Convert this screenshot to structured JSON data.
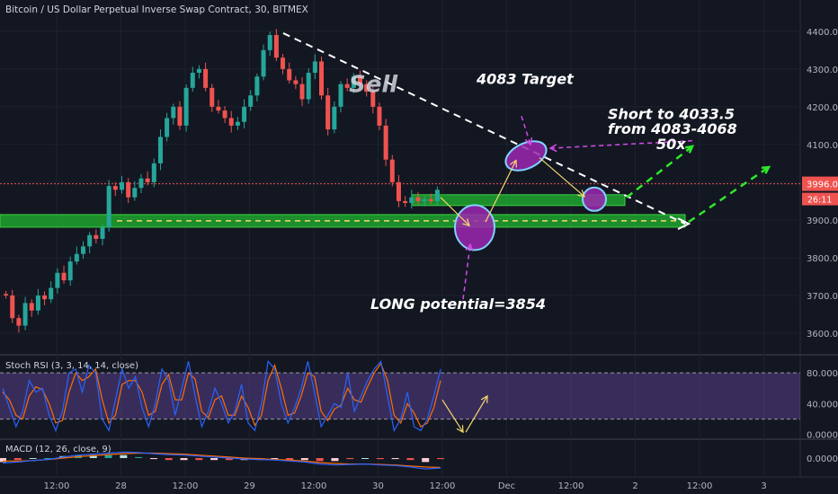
{
  "chart_data": {
    "type": "candlestick",
    "title": "Bitcoin / US Dollar Perpetual Inverse Swap Contract, 30, BITMEX",
    "x_ticks": [
      "12:00",
      "28",
      "12:00",
      "29",
      "12:00",
      "30",
      "12:00",
      "Dec",
      "12:00",
      "2",
      "12:00",
      "3"
    ],
    "price_axis": {
      "ticks": [
        4400,
        4300,
        4200,
        4100,
        4000,
        3900,
        3800,
        3700,
        3600
      ],
      "ylim": [
        3550,
        4440
      ]
    },
    "last_price": {
      "value": "3996.0",
      "countdown": "26:11"
    },
    "price_path": [
      3700,
      3640,
      3620,
      3680,
      3660,
      3700,
      3690,
      3720,
      3760,
      3740,
      3790,
      3810,
      3830,
      3860,
      3850,
      3880,
      3990,
      3980,
      4000,
      3960,
      3985,
      4010,
      4000,
      4050,
      4120,
      4170,
      4200,
      4150,
      4250,
      4290,
      4300,
      4250,
      4200,
      4190,
      4170,
      4150,
      4160,
      4200,
      4230,
      4280,
      4350,
      4390,
      4330,
      4300,
      4270,
      4260,
      4220,
      4290,
      4320,
      4230,
      4140,
      4200,
      4260,
      4250,
      4280,
      4260,
      4240,
      4200,
      4150,
      4060,
      4000,
      3950,
      3945,
      3960,
      3950,
      3955,
      3950,
      3980
    ],
    "annotations": {
      "sell": "Sell",
      "target": "4083 Target",
      "short_lines": [
        "Short to 4033.5",
        "from 4083-4068",
        "50x"
      ],
      "long": "LONG potential=3854"
    },
    "indicators": [
      {
        "name": "Stoch RSI (3, 3, 14, 14, close)",
        "ticks": [
          "80.0000",
          "40.0000",
          "0.0000"
        ],
        "ylim": [
          -5,
          100
        ],
        "band": [
          20,
          80
        ],
        "k": [
          60,
          35,
          10,
          30,
          70,
          55,
          60,
          25,
          5,
          30,
          80,
          85,
          55,
          90,
          80,
          20,
          5,
          45,
          85,
          60,
          75,
          35,
          10,
          40,
          85,
          70,
          25,
          60,
          95,
          50,
          10,
          30,
          60,
          40,
          15,
          30,
          65,
          15,
          5,
          40,
          95,
          85,
          40,
          15,
          35,
          60,
          95,
          55,
          10,
          25,
          40,
          35,
          80,
          30,
          50,
          70,
          85,
          95,
          50,
          5,
          20,
          55,
          10,
          5,
          20,
          50,
          85
        ],
        "d": [
          55,
          45,
          25,
          20,
          50,
          62,
          58,
          40,
          15,
          18,
          55,
          80,
          70,
          75,
          85,
          45,
          15,
          25,
          65,
          70,
          70,
          55,
          25,
          30,
          65,
          78,
          45,
          45,
          80,
          72,
          30,
          22,
          45,
          50,
          25,
          25,
          50,
          35,
          12,
          25,
          70,
          90,
          60,
          25,
          28,
          50,
          80,
          75,
          30,
          18,
          33,
          38,
          60,
          45,
          42,
          62,
          80,
          92,
          70,
          25,
          15,
          40,
          28,
          10,
          15,
          35,
          70
        ]
      },
      {
        "name": "MACD (12, 26, close, 9)",
        "ticks": [
          "0.0000"
        ],
        "macd": [
          -10,
          -8,
          -5,
          -3,
          2,
          6,
          8,
          10,
          12,
          11,
          9,
          7,
          6,
          4,
          2,
          0,
          -2,
          -3,
          -4,
          -6,
          -8,
          -12,
          -14,
          -13,
          -12,
          -14,
          -15,
          -18,
          -22,
          -20
        ],
        "signal": [
          -6,
          -6,
          -5,
          -3,
          0,
          3,
          5,
          7,
          9,
          10,
          10,
          9,
          8,
          6,
          4,
          2,
          0,
          -1,
          -3,
          -4,
          -6,
          -9,
          -11,
          -12,
          -12,
          -13,
          -14,
          -16,
          -18,
          -19
        ]
      }
    ]
  }
}
